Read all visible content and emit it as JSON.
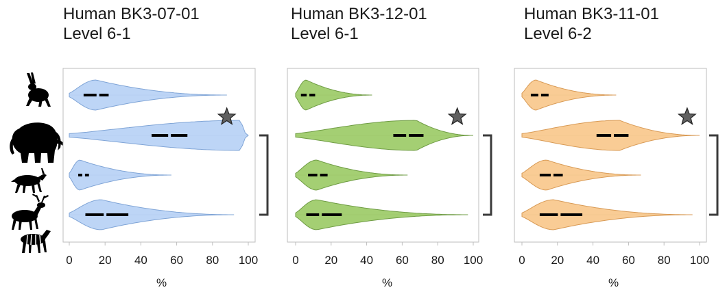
{
  "chart_data": [
    {
      "type": "violin",
      "title_lines": [
        "Human BK3-07-01",
        "Level 6-1"
      ],
      "xlabel": "%",
      "xlim": [
        0,
        100
      ],
      "xticks": [
        0,
        20,
        40,
        60,
        80,
        100
      ],
      "color": "#b9d3f6",
      "edge_color": "#7fa4d6",
      "categories": [
        "hare",
        "mammoth",
        "saiga",
        "red deer / horse"
      ],
      "series": [
        {
          "category": "hare",
          "min": 0,
          "max": 88,
          "mode": 15,
          "q1": 8,
          "median": 16,
          "q3": 22,
          "mode_density": 1.0
        },
        {
          "category": "mammoth",
          "min": 0,
          "max": 100,
          "mode": 96,
          "q1": 46,
          "median": 56,
          "q3": 66,
          "mode_density": 1.0
        },
        {
          "category": "saiga",
          "min": 0,
          "max": 57,
          "mode": 6,
          "q1": 5,
          "median": 8,
          "q3": 11,
          "mode_density": 1.0
        },
        {
          "category": "red deer / horse",
          "min": 0,
          "max": 92,
          "mode": 18,
          "q1": 9,
          "median": 20,
          "q3": 33,
          "mode_density": 1.0
        }
      ],
      "star_marker": {
        "category": "mammoth",
        "x": 88,
        "color": "#606060"
      },
      "bracket_categories": [
        "mammoth",
        "red deer / horse"
      ]
    },
    {
      "type": "violin",
      "title_lines": [
        "Human BK3-12-01",
        "Level 6-1"
      ],
      "xlabel": "%",
      "xlim": [
        0,
        100
      ],
      "xticks": [
        0,
        20,
        40,
        60,
        80,
        100
      ],
      "color": "#9fcc6c",
      "edge_color": "#6f9c44",
      "categories": [
        "hare",
        "mammoth",
        "saiga",
        "red deer / horse"
      ],
      "series": [
        {
          "category": "hare",
          "min": 0,
          "max": 43,
          "mode": 6,
          "q1": 3,
          "median": 7,
          "q3": 11,
          "mode_density": 1.0
        },
        {
          "category": "mammoth",
          "min": 0,
          "max": 100,
          "mode": 68,
          "q1": 55,
          "median": 63,
          "q3": 72,
          "mode_density": 1.0
        },
        {
          "category": "saiga",
          "min": 0,
          "max": 63,
          "mode": 12,
          "q1": 7,
          "median": 13,
          "q3": 18,
          "mode_density": 1.0
        },
        {
          "category": "red deer / horse",
          "min": 0,
          "max": 97,
          "mode": 12,
          "q1": 6,
          "median": 14,
          "q3": 26,
          "mode_density": 1.0
        }
      ],
      "star_marker": {
        "category": "mammoth",
        "x": 91,
        "color": "#606060"
      },
      "bracket_categories": [
        "mammoth",
        "red deer / horse"
      ]
    },
    {
      "type": "violin",
      "title_lines": [
        "Human BK3-11-01",
        "Level 6-2"
      ],
      "xlabel": "%",
      "xlim": [
        0,
        100
      ],
      "xticks": [
        0,
        20,
        40,
        60,
        80,
        100
      ],
      "color": "#f9c98f",
      "edge_color": "#d89a55",
      "categories": [
        "hare",
        "mammoth",
        "saiga",
        "red deer / horse"
      ],
      "series": [
        {
          "category": "hare",
          "min": 0,
          "max": 53,
          "mode": 8,
          "q1": 5,
          "median": 10,
          "q3": 15,
          "mode_density": 1.0
        },
        {
          "category": "mammoth",
          "min": 0,
          "max": 100,
          "mode": 55,
          "q1": 42,
          "median": 51,
          "q3": 60,
          "mode_density": 1.0
        },
        {
          "category": "saiga",
          "min": 0,
          "max": 67,
          "mode": 14,
          "q1": 10,
          "median": 17,
          "q3": 23,
          "mode_density": 1.0
        },
        {
          "category": "red deer / horse",
          "min": 0,
          "max": 96,
          "mode": 18,
          "q1": 10,
          "median": 21,
          "q3": 34,
          "mode_density": 1.0
        }
      ],
      "star_marker": {
        "category": "mammoth",
        "x": 93,
        "color": "#606060"
      },
      "bracket_categories": [
        "mammoth",
        "red deer / horse"
      ]
    }
  ],
  "icons": [
    "hare-icon",
    "mammoth-icon",
    "saiga-icon",
    "red-deer-icon",
    "horse-icon"
  ]
}
